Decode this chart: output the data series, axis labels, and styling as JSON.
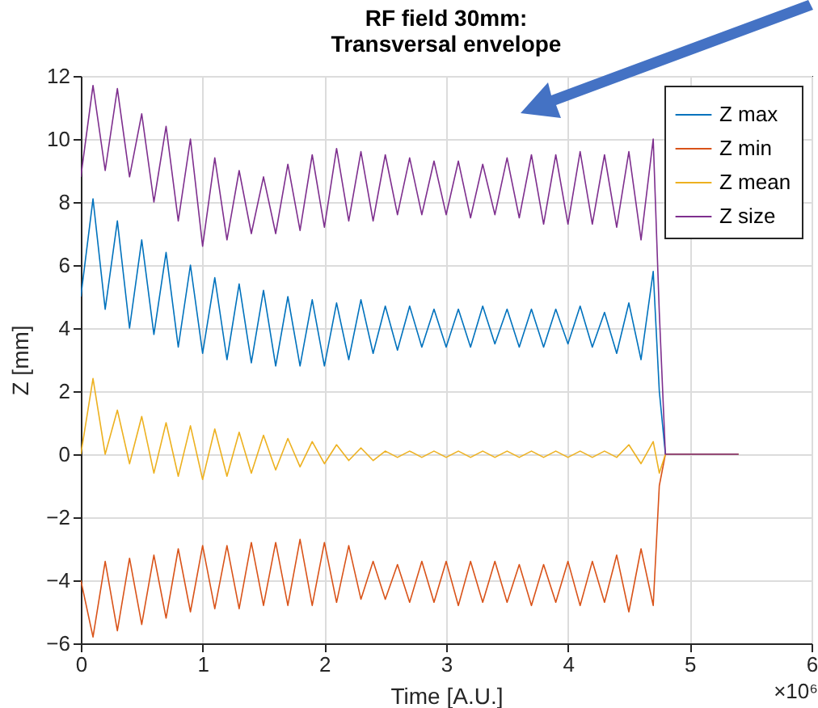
{
  "chart_data": {
    "type": "line",
    "title": "RF field 30mm:\nTransversal envelope",
    "xlabel": "Time [A.U.]",
    "ylabel": "Z [mm]",
    "annotations": [
      "×10⁶"
    ],
    "x": [
      0,
      0.1,
      0.2,
      0.3,
      0.4,
      0.5,
      0.6,
      0.7,
      0.8,
      0.9,
      1.0,
      1.1,
      1.2,
      1.3,
      1.4,
      1.5,
      1.6,
      1.7,
      1.8,
      1.9,
      2.0,
      2.1,
      2.2,
      2.3,
      2.4,
      2.5,
      2.6,
      2.7,
      2.8,
      2.9,
      3.0,
      3.1,
      3.2,
      3.3,
      3.4,
      3.5,
      3.6,
      3.7,
      3.8,
      3.9,
      4.0,
      4.1,
      4.2,
      4.3,
      4.4,
      4.5,
      4.6,
      4.7,
      4.75,
      4.8,
      5.4
    ],
    "series": [
      {
        "name": "Z max",
        "color": "#0072bd",
        "values": [
          5.0,
          8.1,
          4.6,
          7.4,
          4.0,
          6.8,
          3.8,
          6.4,
          3.4,
          6.0,
          3.2,
          5.6,
          3.0,
          5.4,
          2.9,
          5.2,
          2.8,
          5.0,
          2.8,
          4.9,
          2.8,
          4.8,
          3.0,
          4.9,
          3.2,
          4.7,
          3.3,
          4.7,
          3.4,
          4.6,
          3.4,
          4.6,
          3.4,
          4.7,
          3.5,
          4.6,
          3.4,
          4.6,
          3.4,
          4.6,
          3.5,
          4.7,
          3.4,
          4.5,
          3.2,
          4.8,
          3.0,
          5.8,
          2.0,
          0,
          0
        ]
      },
      {
        "name": "Z min",
        "color": "#d95319",
        "values": [
          -4.0,
          -5.8,
          -3.4,
          -5.6,
          -3.3,
          -5.4,
          -3.2,
          -5.2,
          -3.0,
          -5.0,
          -2.9,
          -4.9,
          -2.9,
          -4.9,
          -2.8,
          -4.8,
          -2.8,
          -4.8,
          -2.7,
          -4.8,
          -2.8,
          -4.7,
          -2.9,
          -4.6,
          -3.4,
          -4.6,
          -3.5,
          -4.7,
          -3.4,
          -4.7,
          -3.4,
          -4.8,
          -3.4,
          -4.7,
          -3.4,
          -4.7,
          -3.5,
          -4.8,
          -3.5,
          -4.7,
          -3.4,
          -4.8,
          -3.4,
          -4.7,
          -3.2,
          -5.0,
          -3.0,
          -4.8,
          -1.0,
          0,
          0
        ]
      },
      {
        "name": "Z mean",
        "color": "#edb120",
        "values": [
          0,
          2.4,
          0.0,
          1.4,
          -0.3,
          1.2,
          -0.6,
          1.0,
          -0.7,
          0.9,
          -0.8,
          0.8,
          -0.7,
          0.7,
          -0.6,
          0.6,
          -0.5,
          0.5,
          -0.4,
          0.4,
          -0.3,
          0.3,
          -0.2,
          0.2,
          -0.2,
          0.1,
          -0.1,
          0.1,
          -0.1,
          0.1,
          -0.1,
          0.1,
          -0.1,
          0.1,
          -0.1,
          0.1,
          -0.1,
          0.1,
          -0.1,
          0.1,
          -0.1,
          0.1,
          -0.1,
          0.1,
          -0.1,
          0.3,
          -0.3,
          0.4,
          -0.6,
          0,
          0
        ]
      },
      {
        "name": "Z size",
        "color": "#7e2f8e",
        "values": [
          8.8,
          11.7,
          9.0,
          11.6,
          8.8,
          10.8,
          8.0,
          10.4,
          7.4,
          10.0,
          6.6,
          9.4,
          6.8,
          9.0,
          7.0,
          8.8,
          7.0,
          9.2,
          7.1,
          9.5,
          7.2,
          9.7,
          7.4,
          9.6,
          7.4,
          9.5,
          7.6,
          9.4,
          7.6,
          9.3,
          7.6,
          9.3,
          7.5,
          9.2,
          7.6,
          9.4,
          7.5,
          9.5,
          7.3,
          9.5,
          7.3,
          9.6,
          7.3,
          9.5,
          7.2,
          9.6,
          6.8,
          10.0,
          4.5,
          0,
          0
        ]
      }
    ],
    "xlim": [
      0,
      6
    ],
    "xticks": [
      0,
      1,
      2,
      3,
      4,
      5,
      6
    ],
    "ylim": [
      -6,
      12
    ],
    "yticks": [
      -6,
      -4,
      -2,
      0,
      2,
      4,
      6,
      8,
      10,
      12
    ],
    "grid": true,
    "legend": "top right",
    "marker": "none",
    "line_style": "solid"
  }
}
